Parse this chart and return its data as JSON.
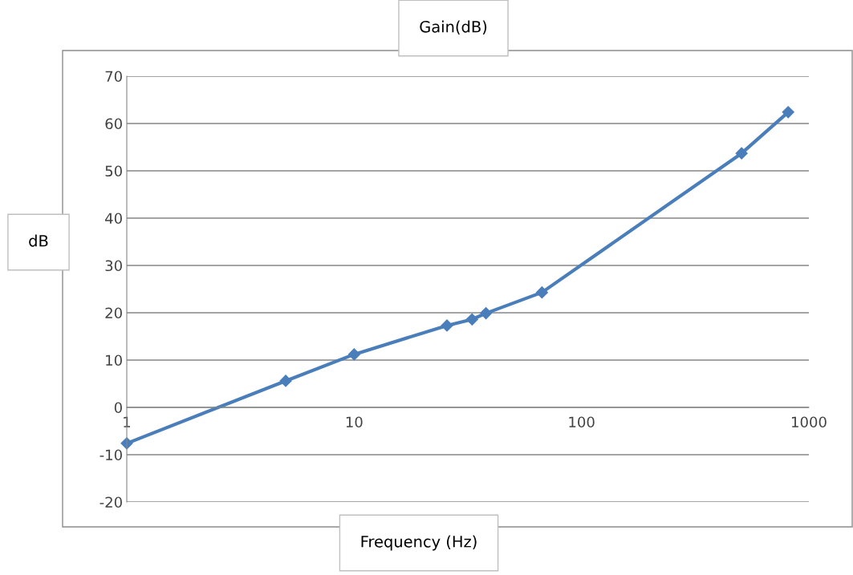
{
  "chart_data": {
    "type": "line",
    "title": "Gain(dB)",
    "xlabel": "Frequency (Hz)",
    "ylabel": "dB",
    "x": [
      1,
      5,
      10,
      25.6,
      33,
      38,
      67,
      506,
      811
    ],
    "series": [
      {
        "color": "#4a7ebb",
        "values": [
          -7.6,
          5.6,
          11.2,
          17.3,
          18.6,
          19.9,
          24.3,
          53.7,
          62.4
        ]
      }
    ],
    "log": "x",
    "xlim": [
      1,
      1000
    ],
    "xticks": [
      1,
      10,
      100,
      1000
    ],
    "ylim": [
      -20,
      70
    ],
    "yticks": [
      -20,
      -10,
      0,
      10,
      20,
      30,
      40,
      50,
      60,
      70
    ],
    "grid": "y",
    "marker": "diamond",
    "line_style": "solid"
  }
}
